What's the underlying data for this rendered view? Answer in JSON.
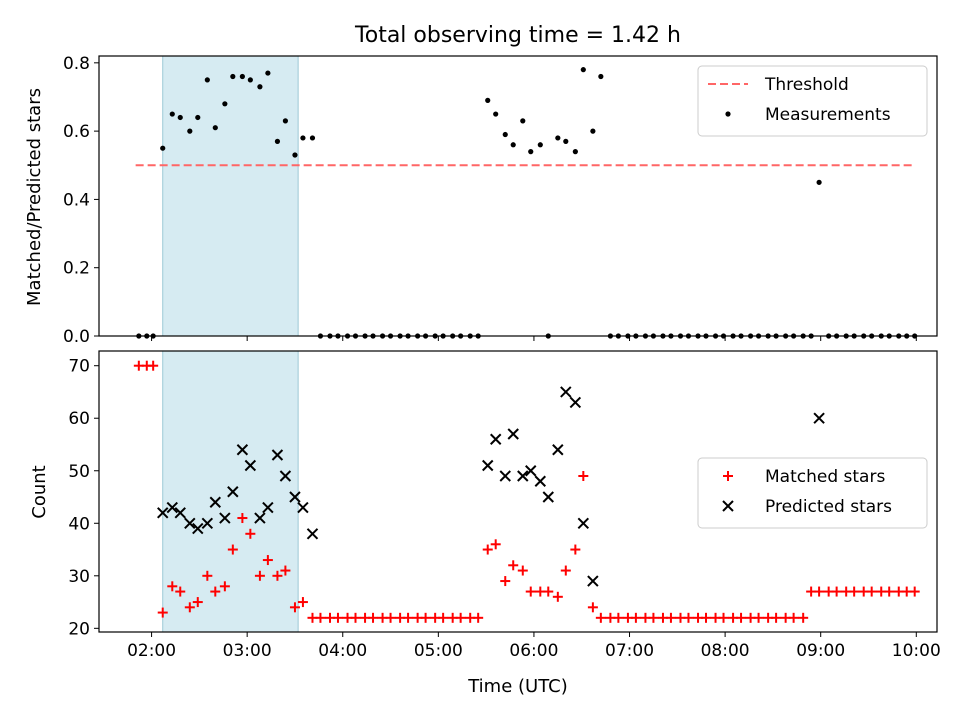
{
  "title": "Total observing time = 1.42 h",
  "chart_data": [
    {
      "type": "scatter",
      "ylabel": "Matched/Predicted stars",
      "xlim": [
        "01:27",
        "10:13"
      ],
      "ylim": [
        0,
        0.82
      ],
      "xticks": [
        "02:00",
        "03:00",
        "04:00",
        "05:00",
        "06:00",
        "07:00",
        "08:00",
        "09:00",
        "10:00"
      ],
      "yticks": [
        "0.0",
        "0.2",
        "0.4",
        "0.6",
        "0.8"
      ],
      "legend_position": "top-right",
      "highlight_span": [
        "02:07",
        "03:32"
      ],
      "highlight_color": "#add8e6",
      "series": [
        {
          "name": "Threshold",
          "style": "dashed-line",
          "color": "#ff6666",
          "x": [
            "01:50",
            "09:58"
          ],
          "y": [
            0.5,
            0.5
          ]
        },
        {
          "name": "Measurements",
          "style": "dot",
          "color": "#000000",
          "points": [
            [
              "01:52",
              0
            ],
            [
              "01:57",
              0
            ],
            [
              "02:01",
              0
            ],
            [
              "02:07",
              0.55
            ],
            [
              "02:13",
              0.65
            ],
            [
              "02:18",
              0.64
            ],
            [
              "02:24",
              0.6
            ],
            [
              "02:29",
              0.64
            ],
            [
              "02:35",
              0.75
            ],
            [
              "02:40",
              0.61
            ],
            [
              "02:46",
              0.68
            ],
            [
              "02:51",
              0.76
            ],
            [
              "02:57",
              0.76
            ],
            [
              "03:02",
              0.75
            ],
            [
              "03:08",
              0.73
            ],
            [
              "03:13",
              0.77
            ],
            [
              "03:19",
              0.57
            ],
            [
              "03:24",
              0.63
            ],
            [
              "03:30",
              0.53
            ],
            [
              "03:35",
              0.58
            ],
            [
              "03:41",
              0.58
            ],
            [
              "03:46",
              0
            ],
            [
              "03:52",
              0
            ],
            [
              "03:57",
              0
            ],
            [
              "04:03",
              0
            ],
            [
              "04:08",
              0
            ],
            [
              "04:14",
              0
            ],
            [
              "04:19",
              0
            ],
            [
              "04:25",
              0
            ],
            [
              "04:30",
              0
            ],
            [
              "04:36",
              0
            ],
            [
              "04:41",
              0
            ],
            [
              "04:47",
              0
            ],
            [
              "04:52",
              0
            ],
            [
              "04:58",
              0
            ],
            [
              "05:03",
              0
            ],
            [
              "05:09",
              0
            ],
            [
              "05:14",
              0
            ],
            [
              "05:20",
              0
            ],
            [
              "05:25",
              0
            ],
            [
              "05:31",
              0.69
            ],
            [
              "05:36",
              0.65
            ],
            [
              "05:42",
              0.59
            ],
            [
              "05:47",
              0.56
            ],
            [
              "05:53",
              0.63
            ],
            [
              "05:58",
              0.54
            ],
            [
              "06:04",
              0.56
            ],
            [
              "06:09",
              0
            ],
            [
              "06:15",
              0.58
            ],
            [
              "06:20",
              0.57
            ],
            [
              "06:26",
              0.54
            ],
            [
              "06:31",
              0.78
            ],
            [
              "06:37",
              0.6
            ],
            [
              "06:42",
              0.76
            ],
            [
              "06:48",
              0
            ],
            [
              "06:53",
              0
            ],
            [
              "06:59",
              0
            ],
            [
              "07:04",
              0
            ],
            [
              "07:10",
              0
            ],
            [
              "07:15",
              0
            ],
            [
              "07:21",
              0
            ],
            [
              "07:26",
              0
            ],
            [
              "07:32",
              0
            ],
            [
              "07:37",
              0
            ],
            [
              "07:43",
              0
            ],
            [
              "07:48",
              0
            ],
            [
              "07:54",
              0
            ],
            [
              "07:59",
              0
            ],
            [
              "08:05",
              0
            ],
            [
              "08:10",
              0
            ],
            [
              "08:16",
              0
            ],
            [
              "08:21",
              0
            ],
            [
              "08:27",
              0
            ],
            [
              "08:32",
              0
            ],
            [
              "08:38",
              0
            ],
            [
              "08:43",
              0
            ],
            [
              "08:49",
              0
            ],
            [
              "08:54",
              0
            ],
            [
              "08:59",
              0.45
            ],
            [
              "09:05",
              0
            ],
            [
              "09:10",
              0
            ],
            [
              "09:16",
              0
            ],
            [
              "09:21",
              0
            ],
            [
              "09:27",
              0
            ],
            [
              "09:32",
              0
            ],
            [
              "09:38",
              0
            ],
            [
              "09:43",
              0
            ],
            [
              "09:49",
              0
            ],
            [
              "09:54",
              0
            ],
            [
              "09:59",
              0
            ]
          ]
        }
      ]
    },
    {
      "type": "scatter",
      "ylabel": "Count",
      "xlabel": "Time (UTC)",
      "xlim": [
        "01:27",
        "10:13"
      ],
      "ylim": [
        19.3,
        72.8
      ],
      "xticks": [
        "02:00",
        "03:00",
        "04:00",
        "05:00",
        "06:00",
        "07:00",
        "08:00",
        "09:00",
        "10:00"
      ],
      "yticks": [
        "20",
        "30",
        "40",
        "50",
        "60",
        "70"
      ],
      "legend_position": "center-right",
      "highlight_span": [
        "02:07",
        "03:32"
      ],
      "highlight_color": "#add8e6",
      "series": [
        {
          "name": "Matched stars",
          "marker": "+",
          "color": "#ff0000",
          "points": [
            [
              "01:52",
              70
            ],
            [
              "01:57",
              70
            ],
            [
              "02:01",
              70
            ],
            [
              "02:07",
              23
            ],
            [
              "02:13",
              28
            ],
            [
              "02:18",
              27
            ],
            [
              "02:24",
              24
            ],
            [
              "02:29",
              25
            ],
            [
              "02:35",
              30
            ],
            [
              "02:40",
              27
            ],
            [
              "02:46",
              28
            ],
            [
              "02:51",
              35
            ],
            [
              "02:57",
              41
            ],
            [
              "03:02",
              38
            ],
            [
              "03:08",
              30
            ],
            [
              "03:13",
              33
            ],
            [
              "03:19",
              30
            ],
            [
              "03:24",
              31
            ],
            [
              "03:30",
              24
            ],
            [
              "03:35",
              25
            ],
            [
              "03:41",
              22
            ],
            [
              "03:46",
              22
            ],
            [
              "03:52",
              22
            ],
            [
              "03:57",
              22
            ],
            [
              "04:03",
              22
            ],
            [
              "04:08",
              22
            ],
            [
              "04:14",
              22
            ],
            [
              "04:19",
              22
            ],
            [
              "04:25",
              22
            ],
            [
              "04:30",
              22
            ],
            [
              "04:36",
              22
            ],
            [
              "04:41",
              22
            ],
            [
              "04:47",
              22
            ],
            [
              "04:52",
              22
            ],
            [
              "04:58",
              22
            ],
            [
              "05:03",
              22
            ],
            [
              "05:09",
              22
            ],
            [
              "05:14",
              22
            ],
            [
              "05:20",
              22
            ],
            [
              "05:25",
              22
            ],
            [
              "05:31",
              35
            ],
            [
              "05:36",
              36
            ],
            [
              "05:42",
              29
            ],
            [
              "05:47",
              32
            ],
            [
              "05:53",
              31
            ],
            [
              "05:58",
              27
            ],
            [
              "06:04",
              27
            ],
            [
              "06:09",
              27
            ],
            [
              "06:15",
              26
            ],
            [
              "06:20",
              31
            ],
            [
              "06:26",
              35
            ],
            [
              "06:31",
              49
            ],
            [
              "06:37",
              24
            ],
            [
              "06:42",
              22
            ],
            [
              "06:48",
              22
            ],
            [
              "06:53",
              22
            ],
            [
              "06:59",
              22
            ],
            [
              "07:04",
              22
            ],
            [
              "07:10",
              22
            ],
            [
              "07:15",
              22
            ],
            [
              "07:21",
              22
            ],
            [
              "07:26",
              22
            ],
            [
              "07:32",
              22
            ],
            [
              "07:37",
              22
            ],
            [
              "07:43",
              22
            ],
            [
              "07:48",
              22
            ],
            [
              "07:54",
              22
            ],
            [
              "07:59",
              22
            ],
            [
              "08:05",
              22
            ],
            [
              "08:10",
              22
            ],
            [
              "08:16",
              22
            ],
            [
              "08:21",
              22
            ],
            [
              "08:27",
              22
            ],
            [
              "08:32",
              22
            ],
            [
              "08:38",
              22
            ],
            [
              "08:43",
              22
            ],
            [
              "08:49",
              22
            ],
            [
              "08:54",
              27
            ],
            [
              "08:59",
              27
            ],
            [
              "09:05",
              27
            ],
            [
              "09:10",
              27
            ],
            [
              "09:16",
              27
            ],
            [
              "09:21",
              27
            ],
            [
              "09:27",
              27
            ],
            [
              "09:32",
              27
            ],
            [
              "09:38",
              27
            ],
            [
              "09:43",
              27
            ],
            [
              "09:49",
              27
            ],
            [
              "09:54",
              27
            ],
            [
              "09:59",
              27
            ]
          ]
        },
        {
          "name": "Predicted stars",
          "marker": "x",
          "color": "#000000",
          "points": [
            [
              "02:07",
              42
            ],
            [
              "02:13",
              43
            ],
            [
              "02:18",
              42
            ],
            [
              "02:24",
              40
            ],
            [
              "02:29",
              39
            ],
            [
              "02:35",
              40
            ],
            [
              "02:40",
              44
            ],
            [
              "02:46",
              41
            ],
            [
              "02:51",
              46
            ],
            [
              "02:57",
              54
            ],
            [
              "03:02",
              51
            ],
            [
              "03:08",
              41
            ],
            [
              "03:13",
              43
            ],
            [
              "03:19",
              53
            ],
            [
              "03:24",
              49
            ],
            [
              "03:30",
              45
            ],
            [
              "03:35",
              43
            ],
            [
              "03:41",
              38
            ],
            [
              "05:31",
              51
            ],
            [
              "05:36",
              56
            ],
            [
              "05:42",
              49
            ],
            [
              "05:47",
              57
            ],
            [
              "05:53",
              49
            ],
            [
              "05:58",
              50
            ],
            [
              "06:04",
              48
            ],
            [
              "06:09",
              45
            ],
            [
              "06:15",
              54
            ],
            [
              "06:20",
              65
            ],
            [
              "06:26",
              63
            ],
            [
              "06:31",
              40
            ],
            [
              "06:37",
              29
            ],
            [
              "08:59",
              60
            ]
          ]
        }
      ]
    }
  ]
}
